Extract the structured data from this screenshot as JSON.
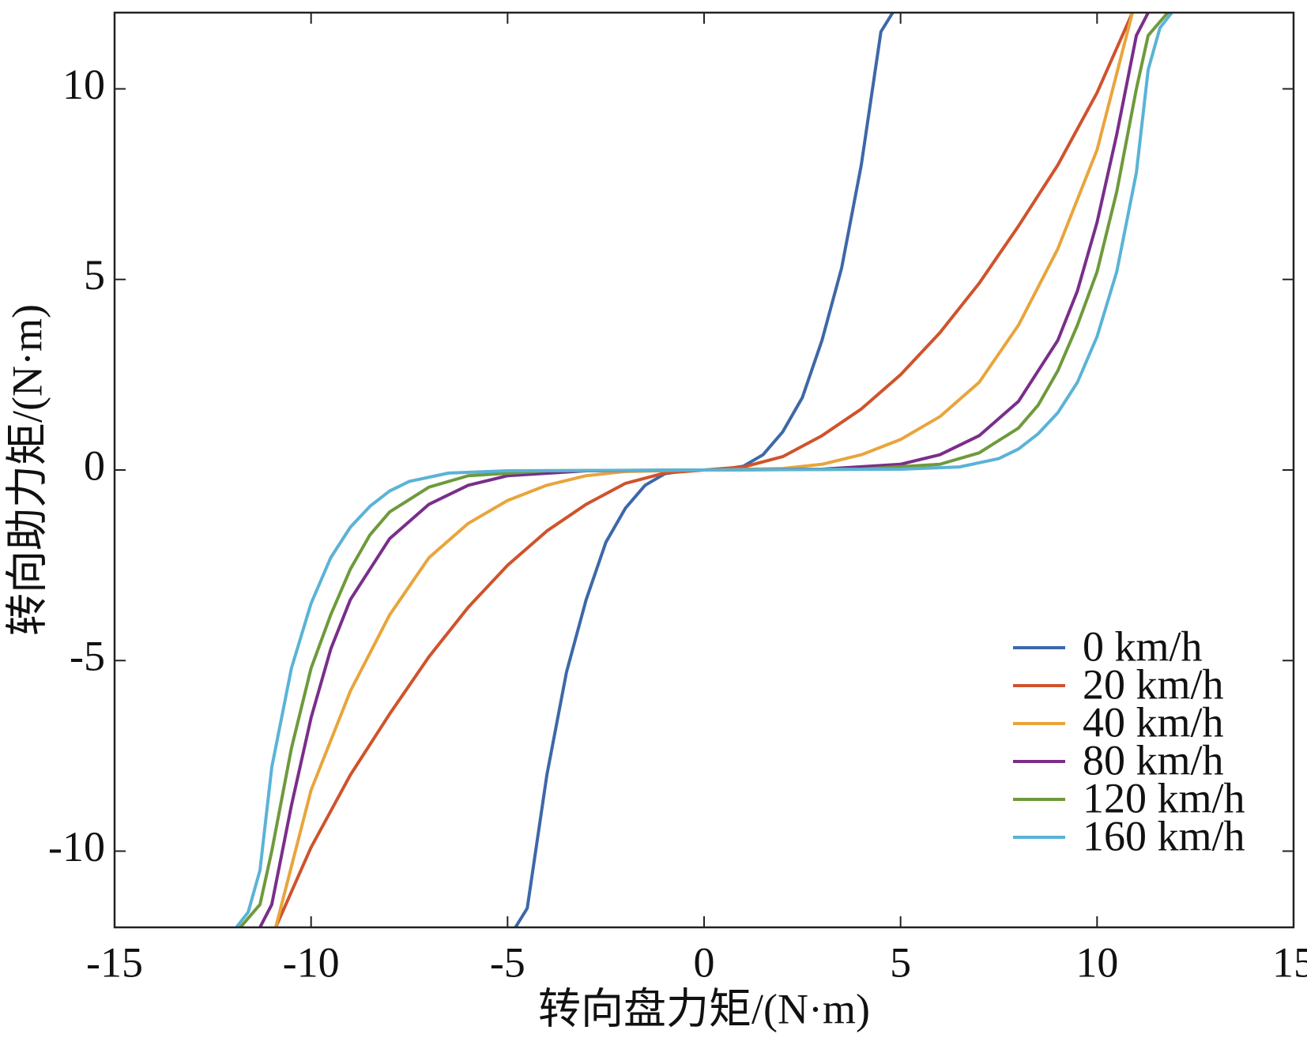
{
  "chart_data": {
    "type": "line",
    "xlabel": "转向盘力矩/(N·m)",
    "ylabel": "转向助力矩/(N·m)",
    "xlim": [
      -15,
      15
    ],
    "xticks": [
      -15,
      -10,
      -5,
      0,
      5,
      10,
      15
    ],
    "ylim": [
      -12,
      12
    ],
    "yticks": [
      -10,
      -5,
      0,
      5,
      10
    ],
    "legend": "lower right",
    "series": [
      {
        "name": "0 km/h",
        "color": "#3d68a8",
        "x": [
          -4.8,
          -4.5,
          -4,
          -3.5,
          -3,
          -2.5,
          -2,
          -1.5,
          -1,
          -0.5,
          0,
          0.5,
          1,
          1.5,
          2,
          2.5,
          3,
          3.5,
          4,
          4.5,
          4.8
        ],
        "values": [
          -12,
          -11.5,
          -8,
          -5.3,
          -3.4,
          -1.9,
          -1,
          -0.4,
          -0.1,
          -0.02,
          0,
          0.02,
          0.1,
          0.4,
          1,
          1.9,
          3.4,
          5.3,
          8,
          11.5,
          12
        ]
      },
      {
        "name": "20 km/h",
        "color": "#cf532c",
        "x": [
          -10.9,
          -10,
          -9,
          -8,
          -7,
          -6,
          -5,
          -4,
          -3,
          -2,
          -1,
          0,
          1,
          2,
          3,
          4,
          5,
          6,
          7,
          8,
          9,
          10,
          10.9
        ],
        "values": [
          -12,
          -9.9,
          -8,
          -6.4,
          -4.9,
          -3.6,
          -2.5,
          -1.6,
          -0.9,
          -0.35,
          -0.08,
          0,
          0.08,
          0.35,
          0.9,
          1.6,
          2.5,
          3.6,
          4.9,
          6.4,
          8,
          9.9,
          12
        ]
      },
      {
        "name": "40 km/h",
        "color": "#e8a53c",
        "x": [
          -10.9,
          -10,
          -9,
          -8,
          -7,
          -6,
          -5,
          -4,
          -3,
          -2,
          0,
          2,
          3,
          4,
          5,
          6,
          7,
          8,
          9,
          10,
          10.9
        ],
        "values": [
          -12,
          -8.4,
          -5.8,
          -3.8,
          -2.3,
          -1.4,
          -0.8,
          -0.4,
          -0.15,
          -0.04,
          0,
          0.04,
          0.15,
          0.4,
          0.8,
          1.4,
          2.3,
          3.8,
          5.8,
          8.4,
          12
        ]
      },
      {
        "name": "80 km/h",
        "color": "#7a2e8a",
        "x": [
          -11.3,
          -11,
          -10.5,
          -10,
          -9.5,
          -9,
          -8,
          -7,
          -6,
          -5,
          -3,
          0,
          3,
          5,
          6,
          7,
          8,
          9,
          9.5,
          10,
          10.5,
          11,
          11.3
        ],
        "values": [
          -12,
          -11.4,
          -8.8,
          -6.5,
          -4.7,
          -3.4,
          -1.8,
          -0.9,
          -0.4,
          -0.15,
          -0.02,
          0,
          0.02,
          0.15,
          0.4,
          0.9,
          1.8,
          3.4,
          4.7,
          6.5,
          8.8,
          11.4,
          12
        ]
      },
      {
        "name": "120 km/h",
        "color": "#6e9a3c",
        "x": [
          -11.8,
          -11.3,
          -11,
          -10.5,
          -10,
          -9.5,
          -9,
          -8.5,
          -8,
          -7,
          -6,
          -4,
          0,
          4,
          6,
          7,
          8,
          8.5,
          9,
          9.5,
          10,
          10.5,
          11,
          11.3,
          11.8
        ],
        "values": [
          -12,
          -11.4,
          -10,
          -7.3,
          -5.2,
          -3.8,
          -2.6,
          -1.7,
          -1.1,
          -0.45,
          -0.15,
          -0.02,
          0,
          0.02,
          0.15,
          0.45,
          1.1,
          1.7,
          2.6,
          3.8,
          5.2,
          7.3,
          10,
          11.4,
          12
        ]
      },
      {
        "name": "160 km/h",
        "color": "#5ab3d6",
        "x": [
          -11.9,
          -11.6,
          -11.3,
          -11,
          -10.5,
          -10,
          -9.5,
          -9,
          -8.5,
          -8,
          -7.5,
          -6.5,
          -5,
          0,
          5,
          6.5,
          7.5,
          8,
          8.5,
          9,
          9.5,
          10,
          10.5,
          11,
          11.3,
          11.6,
          11.9
        ],
        "values": [
          -12,
          -11.6,
          -10.5,
          -7.8,
          -5.2,
          -3.5,
          -2.3,
          -1.5,
          -0.95,
          -0.55,
          -0.3,
          -0.08,
          -0.02,
          0,
          0.02,
          0.08,
          0.3,
          0.55,
          0.95,
          1.5,
          2.3,
          3.5,
          5.2,
          7.8,
          10.5,
          11.6,
          12
        ]
      }
    ]
  }
}
